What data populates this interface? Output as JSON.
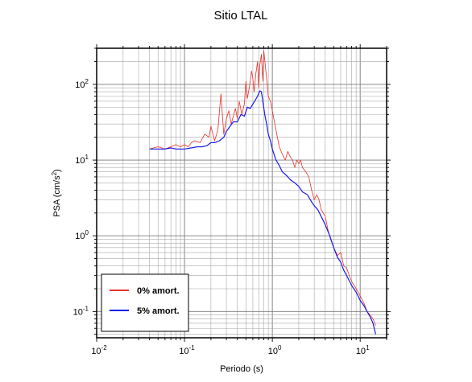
{
  "chart_data": {
    "type": "line",
    "title": "Sitio LTAL",
    "xlabel": "Periodo (s)",
    "ylabel": {
      "prefix": "PSA (cm/s",
      "sup": "2",
      "suffix": ")"
    },
    "xscale": "log",
    "yscale": "log",
    "xlim": [
      0.01,
      20
    ],
    "ylim": [
      0.045,
      300
    ],
    "grid": true,
    "legend_position": "bottom-left",
    "x_ticks": [
      {
        "value": 0.01,
        "base": "10",
        "exp": "-2"
      },
      {
        "value": 0.1,
        "base": "10",
        "exp": "-1"
      },
      {
        "value": 1,
        "base": "10",
        "exp": "0"
      },
      {
        "value": 10,
        "base": "10",
        "exp": "1"
      }
    ],
    "y_ticks": [
      {
        "value": 0.1,
        "base": "10",
        "exp": "-1"
      },
      {
        "value": 1,
        "base": "10",
        "exp": "0"
      },
      {
        "value": 10,
        "base": "10",
        "exp": "1"
      },
      {
        "value": 100,
        "base": "10",
        "exp": "2"
      }
    ],
    "series": [
      {
        "name": "0% amort.",
        "color": "#e8322a",
        "x": [
          0.04,
          0.05,
          0.06,
          0.07,
          0.08,
          0.09,
          0.1,
          0.11,
          0.12,
          0.13,
          0.15,
          0.17,
          0.19,
          0.2,
          0.22,
          0.24,
          0.26,
          0.28,
          0.3,
          0.32,
          0.34,
          0.36,
          0.38,
          0.4,
          0.42,
          0.45,
          0.48,
          0.5,
          0.52,
          0.55,
          0.58,
          0.6,
          0.62,
          0.65,
          0.68,
          0.7,
          0.72,
          0.75,
          0.78,
          0.8,
          0.85,
          0.9,
          0.95,
          1.0,
          1.1,
          1.2,
          1.3,
          1.4,
          1.5,
          1.6,
          1.7,
          1.8,
          1.9,
          2.0,
          2.1,
          2.2,
          2.4,
          2.6,
          2.8,
          3.0,
          3.2,
          3.4,
          3.6,
          3.8,
          4.0,
          4.3,
          4.6,
          5.0,
          5.5,
          6.0,
          6.5,
          7.0,
          7.5,
          8.0,
          9.0,
          10.0,
          11.0,
          12.0,
          13.0,
          14.0,
          15.0
        ],
        "values": [
          14,
          15,
          14,
          15,
          16,
          15,
          16,
          15,
          17,
          18,
          17,
          22,
          20,
          28,
          18,
          25,
          75,
          22,
          35,
          45,
          30,
          38,
          48,
          35,
          60,
          40,
          55,
          110,
          65,
          95,
          150,
          120,
          80,
          140,
          200,
          90,
          180,
          250,
          110,
          280,
          140,
          70,
          60,
          45,
          25,
          15,
          12,
          10,
          13,
          11,
          10,
          8,
          10,
          9,
          10,
          8,
          7,
          6,
          4,
          3,
          3.5,
          3,
          2.2,
          2,
          1.8,
          1.2,
          0.9,
          0.7,
          0.55,
          0.6,
          0.4,
          0.38,
          0.3,
          0.25,
          0.2,
          0.16,
          0.13,
          0.1,
          0.09,
          0.08,
          0.065
        ]
      },
      {
        "name": "5% amort.",
        "color": "#1a1aea",
        "x": [
          0.04,
          0.05,
          0.06,
          0.07,
          0.08,
          0.09,
          0.1,
          0.12,
          0.14,
          0.16,
          0.18,
          0.2,
          0.22,
          0.25,
          0.28,
          0.3,
          0.33,
          0.36,
          0.4,
          0.44,
          0.48,
          0.52,
          0.56,
          0.6,
          0.64,
          0.68,
          0.72,
          0.75,
          0.78,
          0.82,
          0.86,
          0.9,
          0.95,
          1.0,
          1.1,
          1.2,
          1.3,
          1.4,
          1.5,
          1.6,
          1.8,
          2.0,
          2.2,
          2.5,
          2.8,
          3.0,
          3.3,
          3.6,
          4.0,
          4.5,
          5.0,
          5.5,
          6.0,
          6.5,
          7.0,
          8.0,
          9.0,
          10.0,
          11.0,
          12.0,
          13.0,
          14.0,
          15.0
        ],
        "values": [
          14,
          14,
          14,
          14.5,
          14,
          14,
          14,
          14.5,
          15,
          15,
          15.5,
          17,
          17,
          18,
          20,
          24,
          28,
          32,
          32,
          40,
          38,
          50,
          48,
          55,
          62,
          70,
          82,
          80,
          60,
          40,
          30,
          22,
          18,
          14,
          10,
          8.5,
          7,
          6.5,
          6,
          5.5,
          5,
          4.5,
          3.8,
          3.5,
          2.8,
          2.5,
          2.2,
          1.8,
          1.4,
          1.0,
          0.7,
          0.52,
          0.45,
          0.35,
          0.3,
          0.22,
          0.18,
          0.14,
          0.12,
          0.1,
          0.085,
          0.07,
          0.05
        ]
      }
    ]
  }
}
